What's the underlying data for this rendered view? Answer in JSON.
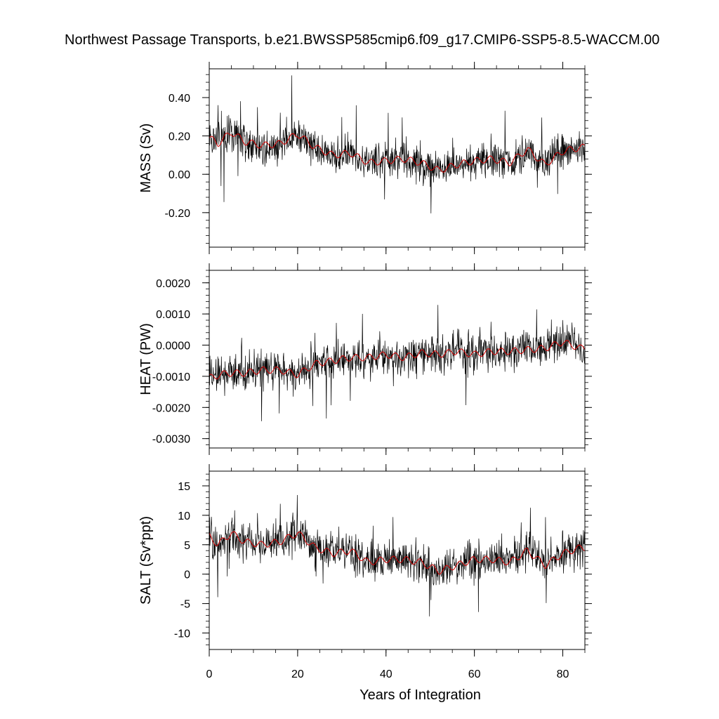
{
  "title": "Northwest Passage Transports, b.e21.BWSSP585cmip6.f09_g17.CMIP6-SSP5-8.5-WACCM.00",
  "chart_data": [
    {
      "type": "line",
      "ylabel": "MASS (Sv)",
      "xlim": [
        0,
        85
      ],
      "ylim": [
        -0.38,
        0.55
      ],
      "y_ticks": [
        -0.2,
        0.0,
        0.2,
        0.4
      ],
      "y_tick_labels": [
        "-0.20",
        "0.00",
        "0.20",
        "0.40"
      ],
      "x_ticks": [
        0,
        20,
        40,
        60,
        80
      ],
      "series": [
        {
          "color": "#000000",
          "style": "monthly",
          "x": [
            0,
            85
          ],
          "y": [
            0.17,
            0.06
          ]
        },
        {
          "color": "#d40000",
          "style": "annual-running-mean",
          "x": [
            0,
            2,
            5,
            8,
            12,
            16,
            20,
            24,
            28,
            32,
            36,
            40,
            44,
            48,
            52,
            56,
            60,
            64,
            68,
            72,
            76,
            80,
            84
          ],
          "y": [
            0.19,
            0.16,
            0.22,
            0.17,
            0.15,
            0.16,
            0.21,
            0.14,
            0.1,
            0.11,
            0.06,
            0.07,
            0.08,
            0.06,
            0.02,
            0.05,
            0.07,
            0.08,
            0.06,
            0.13,
            0.05,
            0.12,
            0.14
          ]
        }
      ]
    },
    {
      "type": "line",
      "ylabel": "HEAT (PW)",
      "xlim": [
        0,
        85
      ],
      "ylim": [
        -0.0033,
        0.0024
      ],
      "y_ticks": [
        -0.003,
        -0.002,
        -0.001,
        0.0,
        0.001,
        0.002
      ],
      "y_tick_labels": [
        "-0.0030",
        "-0.0020",
        "-0.0010",
        "0.0000",
        "0.0010",
        "0.0020"
      ],
      "x_ticks": [
        0,
        20,
        40,
        60,
        80
      ],
      "series": [
        {
          "color": "#000000",
          "style": "monthly",
          "x": [
            0,
            85
          ],
          "y": [
            -0.00105,
            0.0001
          ]
        },
        {
          "color": "#d40000",
          "style": "annual-running-mean",
          "x": [
            0,
            4,
            8,
            12,
            16,
            20,
            24,
            28,
            32,
            36,
            40,
            44,
            48,
            52,
            56,
            60,
            64,
            68,
            72,
            76,
            80,
            84
          ],
          "y": [
            -0.00105,
            -0.0009,
            -0.0009,
            -0.0008,
            -0.0008,
            -0.00095,
            -0.0006,
            -0.0005,
            -0.0004,
            -0.0004,
            -0.0003,
            -0.0004,
            -0.00025,
            -0.0003,
            -0.0002,
            -0.0003,
            -0.0002,
            -0.0002,
            -0.00015,
            -0.0001,
            0.0001,
            -0.0001
          ]
        }
      ]
    },
    {
      "type": "line",
      "ylabel": "SALT (Sv*ppt)",
      "xlim": [
        0,
        85
      ],
      "ylim": [
        -12.8,
        17.5
      ],
      "y_ticks": [
        -10,
        -5,
        0,
        5,
        10,
        15
      ],
      "y_tick_labels": [
        "-10",
        "-5",
        "0",
        "5",
        "10",
        "15"
      ],
      "x_ticks": [
        0,
        20,
        40,
        60,
        80
      ],
      "x_tick_labels": [
        "0",
        "20",
        "40",
        "60",
        "80"
      ],
      "xlabel": "Years of Integration",
      "series": [
        {
          "color": "#000000",
          "style": "monthly",
          "x": [
            0,
            85
          ],
          "y": [
            6.0,
            3.0
          ]
        },
        {
          "color": "#d40000",
          "style": "annual-running-mean",
          "x": [
            0,
            2,
            5,
            8,
            12,
            16,
            20,
            24,
            28,
            32,
            36,
            40,
            44,
            48,
            52,
            56,
            60,
            64,
            68,
            72,
            76,
            80,
            84
          ],
          "y": [
            6.5,
            5.0,
            7.0,
            5.5,
            5.0,
            5.5,
            7.0,
            4.5,
            3.5,
            4.0,
            2.0,
            2.5,
            2.5,
            2.0,
            0.5,
            1.5,
            2.5,
            2.5,
            2.0,
            4.0,
            1.5,
            3.5,
            4.5
          ]
        }
      ]
    }
  ]
}
